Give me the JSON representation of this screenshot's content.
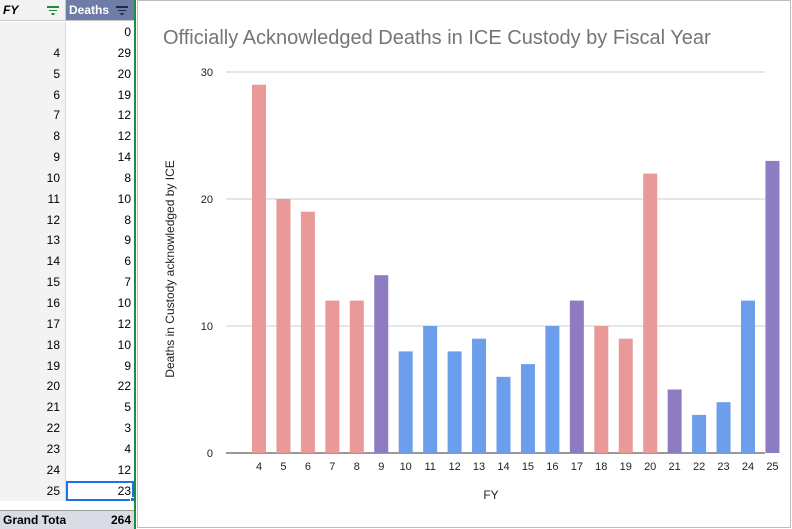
{
  "pivot": {
    "header_fy": "FY",
    "header_deaths": "Deaths",
    "rows": [
      {
        "fy": "",
        "deaths": "0"
      },
      {
        "fy": "4",
        "deaths": "29"
      },
      {
        "fy": "5",
        "deaths": "20"
      },
      {
        "fy": "6",
        "deaths": "19"
      },
      {
        "fy": "7",
        "deaths": "12"
      },
      {
        "fy": "8",
        "deaths": "12"
      },
      {
        "fy": "9",
        "deaths": "14"
      },
      {
        "fy": "10",
        "deaths": "8"
      },
      {
        "fy": "11",
        "deaths": "10"
      },
      {
        "fy": "12",
        "deaths": "8"
      },
      {
        "fy": "13",
        "deaths": "9"
      },
      {
        "fy": "14",
        "deaths": "6"
      },
      {
        "fy": "15",
        "deaths": "7"
      },
      {
        "fy": "16",
        "deaths": "10"
      },
      {
        "fy": "17",
        "deaths": "12"
      },
      {
        "fy": "18",
        "deaths": "10"
      },
      {
        "fy": "19",
        "deaths": "9"
      },
      {
        "fy": "20",
        "deaths": "22"
      },
      {
        "fy": "21",
        "deaths": "5"
      },
      {
        "fy": "22",
        "deaths": "3"
      },
      {
        "fy": "23",
        "deaths": "4"
      },
      {
        "fy": "24",
        "deaths": "12"
      },
      {
        "fy": "25",
        "deaths": "23"
      }
    ],
    "selected_row": 22,
    "total_label": "Grand Total",
    "total_value": "264"
  },
  "colors": {
    "red": "#ea9999",
    "blue": "#6d9eeb",
    "purple": "#8e7cc3",
    "header_accent": "#6d7da8",
    "freeze_line": "#1e8e3e"
  },
  "chart_data": {
    "type": "bar",
    "title": "Officially Acknowledged Deaths in ICE Custody by Fiscal Year",
    "xlabel": "FY",
    "ylabel": "Deaths in Custody acknowledged by ICE",
    "ylim": [
      0,
      30
    ],
    "yticks": [
      0,
      10,
      20,
      30
    ],
    "grid": true,
    "categories": [
      "4",
      "5",
      "6",
      "7",
      "8",
      "9",
      "10",
      "11",
      "12",
      "13",
      "14",
      "15",
      "16",
      "17",
      "18",
      "19",
      "20",
      "21",
      "22",
      "23",
      "24",
      "25"
    ],
    "values": [
      29,
      20,
      19,
      12,
      12,
      14,
      8,
      10,
      8,
      9,
      6,
      7,
      10,
      12,
      10,
      9,
      22,
      5,
      3,
      4,
      12,
      23
    ],
    "bar_colors": [
      "red",
      "red",
      "red",
      "red",
      "red",
      "purple",
      "blue",
      "blue",
      "blue",
      "blue",
      "blue",
      "blue",
      "blue",
      "purple",
      "red",
      "red",
      "red",
      "purple",
      "blue",
      "blue",
      "blue",
      "purple"
    ]
  }
}
